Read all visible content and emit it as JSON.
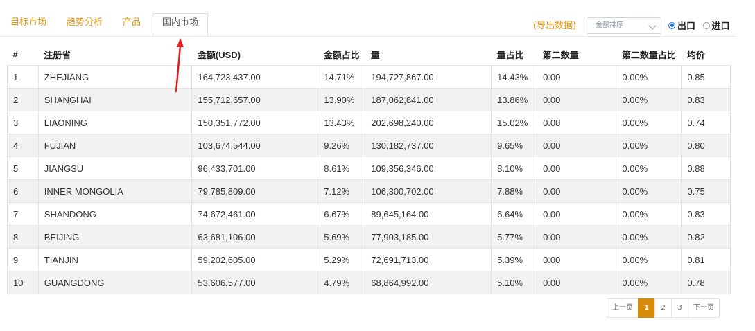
{
  "tabs": [
    "目标市场",
    "趋势分析",
    "产品",
    "国内市场"
  ],
  "export_label": "(导出数据)",
  "sort_select": {
    "value": "金额排序"
  },
  "radios": [
    {
      "label": "出口",
      "checked": true
    },
    {
      "label": "进口",
      "checked": false
    }
  ],
  "table": {
    "headers": [
      "#",
      "注册省",
      "金额(USD)",
      "金额占比",
      "量",
      "量占比",
      "第二数量",
      "第二数量占比",
      "均价"
    ],
    "rows": [
      [
        "1",
        "ZHEJIANG",
        "164,723,437.00",
        "14.71%",
        "194,727,867.00",
        "14.43%",
        "0.00",
        "0.00%",
        "0.85"
      ],
      [
        "2",
        "SHANGHAI",
        "155,712,657.00",
        "13.90%",
        "187,062,841.00",
        "13.86%",
        "0.00",
        "0.00%",
        "0.83"
      ],
      [
        "3",
        "LIAONING",
        "150,351,772.00",
        "13.43%",
        "202,698,240.00",
        "15.02%",
        "0.00",
        "0.00%",
        "0.74"
      ],
      [
        "4",
        "FUJIAN",
        "103,674,544.00",
        "9.26%",
        "130,182,737.00",
        "9.65%",
        "0.00",
        "0.00%",
        "0.80"
      ],
      [
        "5",
        "JIANGSU",
        "96,433,701.00",
        "8.61%",
        "109,356,346.00",
        "8.10%",
        "0.00",
        "0.00%",
        "0.88"
      ],
      [
        "6",
        "INNER MONGOLIA",
        "79,785,809.00",
        "7.12%",
        "106,300,702.00",
        "7.88%",
        "0.00",
        "0.00%",
        "0.75"
      ],
      [
        "7",
        "SHANDONG",
        "74,672,461.00",
        "6.67%",
        "89,645,164.00",
        "6.64%",
        "0.00",
        "0.00%",
        "0.83"
      ],
      [
        "8",
        "BEIJING",
        "63,681,106.00",
        "5.69%",
        "77,903,185.00",
        "5.77%",
        "0.00",
        "0.00%",
        "0.82"
      ],
      [
        "9",
        "TIANJIN",
        "59,202,605.00",
        "5.29%",
        "72,691,713.00",
        "5.39%",
        "0.00",
        "0.00%",
        "0.81"
      ],
      [
        "10",
        "GUANGDONG",
        "53,606,577.00",
        "4.79%",
        "68,864,992.00",
        "5.10%",
        "0.00",
        "0.00%",
        "0.78"
      ]
    ]
  },
  "pagination": {
    "prev": "上一页",
    "pages": [
      "1",
      "2",
      "3"
    ],
    "current": "1",
    "next": "下一页"
  },
  "colors": {
    "accent": "#e6910f",
    "current_page": "#d68a0a",
    "arrow": "#e02020",
    "radio": "#1a73e8"
  }
}
